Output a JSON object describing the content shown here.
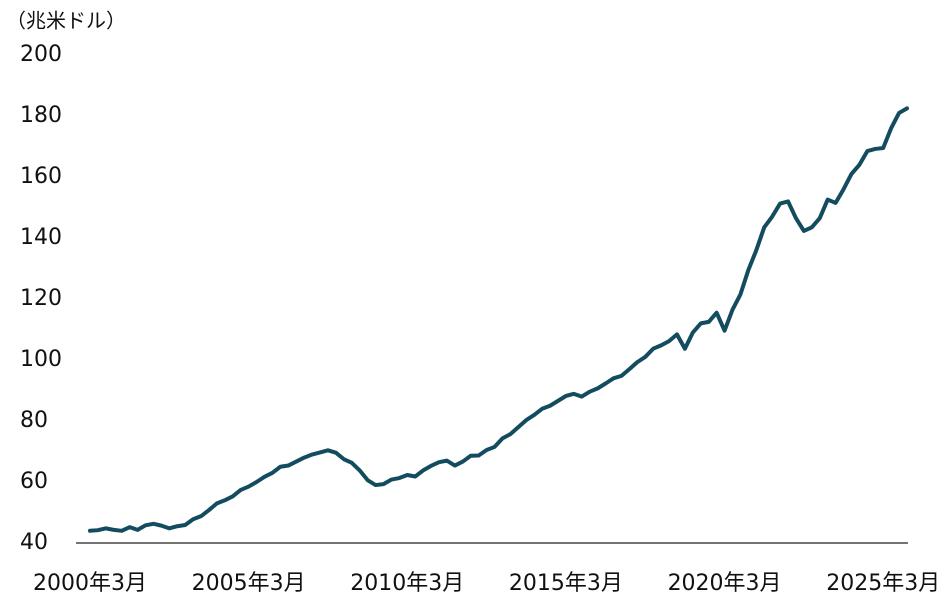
{
  "chart_data": {
    "type": "line",
    "y_label": "（兆米ドル）",
    "categories": [
      "2000年3月",
      null,
      null,
      null,
      null,
      null,
      null,
      null,
      null,
      null,
      null,
      null,
      null,
      null,
      null,
      null,
      null,
      null,
      null,
      null,
      "2005年3月",
      null,
      null,
      null,
      null,
      null,
      null,
      null,
      null,
      null,
      null,
      null,
      null,
      null,
      null,
      null,
      null,
      null,
      null,
      null,
      "2010年3月",
      null,
      null,
      null,
      null,
      null,
      null,
      null,
      null,
      null,
      null,
      null,
      null,
      null,
      null,
      null,
      null,
      null,
      null,
      null,
      "2015年3月",
      null,
      null,
      null,
      null,
      null,
      null,
      null,
      null,
      null,
      null,
      null,
      null,
      null,
      null,
      null,
      null,
      null,
      null,
      null,
      "2020年3月",
      null,
      null,
      null,
      null,
      null,
      null,
      null,
      null,
      null,
      null,
      null,
      null,
      null,
      null,
      null,
      null,
      null,
      null,
      null,
      "2025年3月",
      null,
      null,
      null
    ],
    "values": [
      44,
      44.2,
      44.8,
      44.3,
      44,
      45.2,
      44.3,
      45.8,
      46.3,
      45.7,
      44.8,
      45.5,
      45.9,
      47.8,
      48.8,
      50.8,
      53,
      54,
      55.3,
      57.4,
      58.5,
      60,
      61.7,
      63,
      65,
      65.4,
      66.7,
      68,
      69,
      69.7,
      70.4,
      69.6,
      67.5,
      66.3,
      63.8,
      60.6,
      59,
      59.3,
      60.8,
      61.3,
      62.3,
      61.8,
      63.8,
      65.3,
      66.5,
      67,
      65.4,
      66.7,
      68.6,
      68.7,
      70.5,
      71.5,
      74.3,
      75.7,
      78,
      80.3,
      82,
      84,
      85,
      86.6,
      88.2,
      88.9,
      88,
      89.6,
      90.7,
      92.3,
      94,
      94.8,
      97,
      99.3,
      101,
      103.7,
      104.8,
      106.2,
      108.4,
      103.7,
      109,
      112,
      112.5,
      115.5,
      109.6,
      116.5,
      121.5,
      129.5,
      136,
      143.5,
      147,
      151.3,
      152,
      146.5,
      142.3,
      143.5,
      146.5,
      152.6,
      151.5,
      156,
      161,
      164,
      168.5,
      169.2,
      169.5,
      176,
      181,
      182.5
    ],
    "color": "#134b5f",
    "ylim": [
      40,
      200
    ],
    "yticks": [
      40,
      60,
      80,
      100,
      120,
      140,
      160,
      180,
      200
    ],
    "grid": false
  }
}
